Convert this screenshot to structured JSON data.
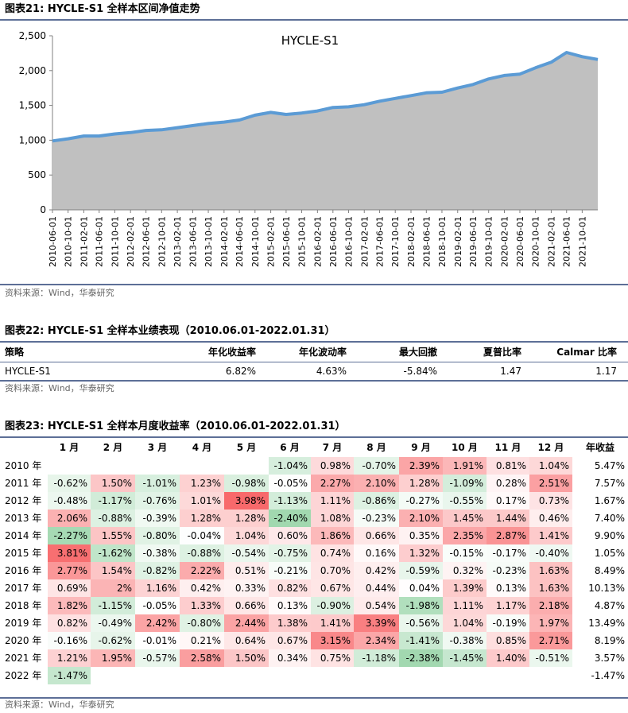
{
  "fig21": {
    "title": "图表21: HYCLE-S1 全样本区间净值走势",
    "source": "资料来源：Wind，华泰研究"
  },
  "fig22": {
    "title": "图表22: HYCLE-S1 全样本业绩表现（2010.06.01-2022.01.31）",
    "source": "资料来源：Wind，华泰研究",
    "headers": [
      "策略",
      "年化收益率",
      "年化波动率",
      "最大回撤",
      "夏普比率",
      "Calmar 比率"
    ],
    "row": [
      "HYCLE-S1",
      "6.82%",
      "4.63%",
      "-5.84%",
      "1.47",
      "1.17"
    ]
  },
  "fig23": {
    "title": "图表23: HYCLE-S1 全样本月度收益率（2010.06.01-2022.01.31）",
    "source": "资料来源：Wind，华泰研究",
    "headers": [
      "1 月",
      "2 月",
      "3 月",
      "4 月",
      "5 月",
      "6 月",
      "7 月",
      "8 月",
      "9 月",
      "10 月",
      "11 月",
      "12 月",
      "年收益"
    ],
    "rows": [
      {
        "year": "2010 年",
        "cells": [
          "",
          "",
          "",
          "",
          "",
          "-1.04%",
          "0.98%",
          "-0.70%",
          "2.39%",
          "1.91%",
          "0.81%",
          "1.04%"
        ],
        "annual": "5.47%"
      },
      {
        "year": "2011 年",
        "cells": [
          "-0.62%",
          "1.50%",
          "-1.01%",
          "1.23%",
          "-0.98%",
          "-0.05%",
          "2.27%",
          "2.10%",
          "1.28%",
          "-1.09%",
          "0.28%",
          "2.51%"
        ],
        "annual": "7.57%"
      },
      {
        "year": "2012 年",
        "cells": [
          "-0.48%",
          "-1.17%",
          "-0.76%",
          "1.01%",
          "3.98%",
          "-1.13%",
          "1.11%",
          "-0.86%",
          "-0.27%",
          "-0.55%",
          "0.17%",
          "0.73%"
        ],
        "annual": "1.67%"
      },
      {
        "year": "2013 年",
        "cells": [
          "2.06%",
          "-0.88%",
          "-0.39%",
          "1.28%",
          "1.28%",
          "-2.40%",
          "1.08%",
          "-0.23%",
          "2.10%",
          "1.45%",
          "1.44%",
          "0.46%"
        ],
        "annual": "7.40%"
      },
      {
        "year": "2014 年",
        "cells": [
          "-2.27%",
          "1.55%",
          "-0.80%",
          "-0.04%",
          "1.04%",
          "0.60%",
          "1.86%",
          "0.66%",
          "0.35%",
          "2.35%",
          "2.87%",
          "1.41%"
        ],
        "annual": "9.90%"
      },
      {
        "year": "2015 年",
        "cells": [
          "3.81%",
          "-1.62%",
          "-0.38%",
          "-0.88%",
          "-0.54%",
          "-0.75%",
          "0.74%",
          "0.16%",
          "1.32%",
          "-0.15%",
          "-0.17%",
          "-0.40%"
        ],
        "annual": "1.05%"
      },
      {
        "year": "2016 年",
        "cells": [
          "2.77%",
          "1.54%",
          "-0.82%",
          "2.22%",
          "0.51%",
          "-0.21%",
          "0.70%",
          "0.42%",
          "-0.59%",
          "0.32%",
          "-0.23%",
          "1.63%"
        ],
        "annual": "8.49%"
      },
      {
        "year": "2017 年",
        "cells": [
          "0.69%",
          "2%",
          "1.16%",
          "0.42%",
          "0.33%",
          "0.82%",
          "0.67%",
          "0.44%",
          "0.04%",
          "1.39%",
          "0.13%",
          "1.63%"
        ],
        "annual": "10.13%"
      },
      {
        "year": "2018 年",
        "cells": [
          "1.82%",
          "-1.15%",
          "-0.05%",
          "1.33%",
          "0.66%",
          "0.13%",
          "-0.90%",
          "0.54%",
          "-1.98%",
          "1.11%",
          "1.17%",
          "2.18%"
        ],
        "annual": "4.87%"
      },
      {
        "year": "2019 年",
        "cells": [
          "0.82%",
          "-0.49%",
          "2.42%",
          "-0.80%",
          "2.44%",
          "1.38%",
          "1.41%",
          "3.39%",
          "-0.56%",
          "1.04%",
          "-0.19%",
          "1.97%"
        ],
        "annual": "13.49%"
      },
      {
        "year": "2020 年",
        "cells": [
          "-0.16%",
          "-0.62%",
          "-0.01%",
          "0.21%",
          "0.64%",
          "0.67%",
          "3.15%",
          "2.34%",
          "-1.41%",
          "-0.38%",
          "0.85%",
          "2.71%"
        ],
        "annual": "8.19%"
      },
      {
        "year": "2021 年",
        "cells": [
          "1.21%",
          "1.95%",
          "-0.57%",
          "2.58%",
          "1.50%",
          "0.34%",
          "0.75%",
          "-1.18%",
          "-2.38%",
          "-1.45%",
          "1.40%",
          "-0.51%"
        ],
        "annual": "3.57%"
      },
      {
        "year": "2022 年",
        "cells": [
          "-1.47%",
          "",
          "",
          "",
          "",
          "",
          "",
          "",
          "",
          "",
          "",
          ""
        ],
        "annual": "-1.47%"
      }
    ]
  },
  "colors": {
    "line": "#5b9bd5",
    "area": "#c0c0c0",
    "positive": "#f8696b",
    "negative": "#63be7b",
    "rule": "#5d6f97"
  },
  "chart_data": {
    "type": "area",
    "title": "HYCLE-S1",
    "ylim": [
      0,
      2500
    ],
    "yticks": [
      0,
      500,
      1000,
      1500,
      2000,
      2500
    ],
    "ytick_labels": [
      "0",
      "500",
      "1,000",
      "1,500",
      "2,000",
      "2,500"
    ],
    "xtick_labels": [
      "2010-06-01",
      "2010-10-01",
      "2011-02-01",
      "2011-06-01",
      "2011-10-01",
      "2012-02-01",
      "2012-06-01",
      "2012-10-01",
      "2013-02-01",
      "2013-06-01",
      "2013-10-01",
      "2014-02-01",
      "2014-06-01",
      "2014-10-01",
      "2015-02-01",
      "2015-06-01",
      "2015-10-01",
      "2016-02-01",
      "2016-06-01",
      "2016-10-01",
      "2017-02-01",
      "2017-06-01",
      "2017-10-01",
      "2018-02-01",
      "2018-06-01",
      "2018-10-01",
      "2019-02-01",
      "2019-06-01",
      "2019-10-01",
      "2020-02-01",
      "2020-06-01",
      "2020-10-01",
      "2021-02-01",
      "2021-06-01",
      "2021-10-01"
    ],
    "series": [
      {
        "name": "HYCLE-S1",
        "x": [
          "2010-06-01",
          "2010-10-01",
          "2011-02-01",
          "2011-06-01",
          "2011-10-01",
          "2012-02-01",
          "2012-06-01",
          "2012-10-01",
          "2013-02-01",
          "2013-06-01",
          "2013-10-01",
          "2014-02-01",
          "2014-06-01",
          "2014-10-01",
          "2015-02-01",
          "2015-06-01",
          "2015-10-01",
          "2016-02-01",
          "2016-06-01",
          "2016-10-01",
          "2017-02-01",
          "2017-06-01",
          "2017-10-01",
          "2018-02-01",
          "2018-06-01",
          "2018-10-01",
          "2019-02-01",
          "2019-06-01",
          "2019-10-01",
          "2020-02-01",
          "2020-06-01",
          "2020-10-01",
          "2021-02-01",
          "2021-06-01",
          "2021-10-01",
          "2022-01-31"
        ],
        "values": [
          990,
          1020,
          1060,
          1060,
          1090,
          1110,
          1140,
          1150,
          1180,
          1210,
          1240,
          1260,
          1290,
          1360,
          1400,
          1370,
          1390,
          1420,
          1470,
          1480,
          1510,
          1560,
          1600,
          1640,
          1680,
          1690,
          1750,
          1800,
          1880,
          1930,
          1950,
          2040,
          2120,
          2260,
          2200,
          2160
        ]
      }
    ]
  }
}
